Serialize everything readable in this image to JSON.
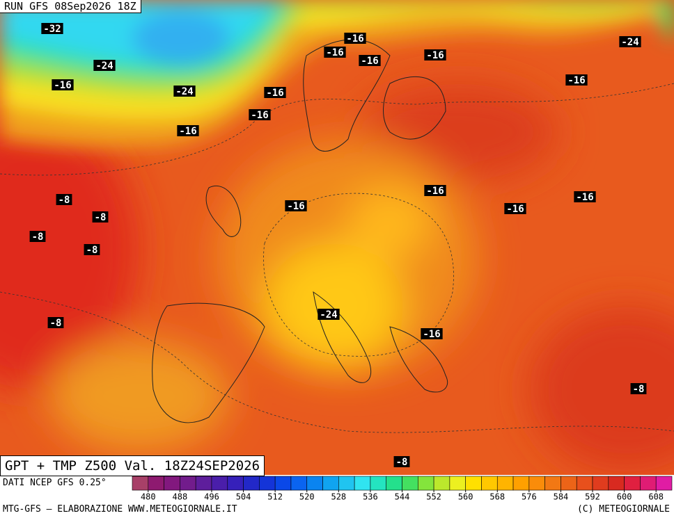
{
  "header": {
    "run": "RUN GFS 08Sep2026 18Z",
    "valid": "GPT + TMP Z500 Val. 18Z24SEP2026"
  },
  "labels": [
    "-32",
    "-24",
    "-16",
    "-24",
    "-16",
    "-16",
    "-16",
    "-16",
    "-16",
    "-16",
    "-16",
    "-24",
    "-16",
    "-8",
    "-8",
    "-8",
    "-8",
    "-8",
    "-16",
    "-16",
    "-16",
    "-16",
    "-24",
    "-16",
    "-8",
    "-8"
  ],
  "colorbar": {
    "ticks": [
      480,
      488,
      496,
      504,
      512,
      520,
      528,
      536,
      544,
      552,
      560,
      568,
      576,
      584,
      592,
      600,
      608
    ],
    "colors": [
      "#a84068",
      "#8e1a70",
      "#82187e",
      "#721c8c",
      "#5e1e9c",
      "#4a1eaa",
      "#3620ba",
      "#2228c8",
      "#1434d8",
      "#0a48e8",
      "#0a64f0",
      "#0a84f0",
      "#10a4f0",
      "#20c4f0",
      "#30e4f0",
      "#24e4c0",
      "#24e08c",
      "#44e060",
      "#84e43c",
      "#bce82c",
      "#ecf020",
      "#ffe000",
      "#ffc800",
      "#ffb400",
      "#ffa000",
      "#fa8c0a",
      "#f27814",
      "#ec6418",
      "#e8501c",
      "#e03c1e",
      "#d82a20",
      "#e02040",
      "#e01c74",
      "#e01ca4"
    ]
  },
  "footer": {
    "source": "DATI NCEP GFS 0.25°",
    "credit": "MTG-GFS — ELABORAZIONE WWW.METEOGIORNALE.IT",
    "copyright": "(C) METEOGIORNALE"
  }
}
